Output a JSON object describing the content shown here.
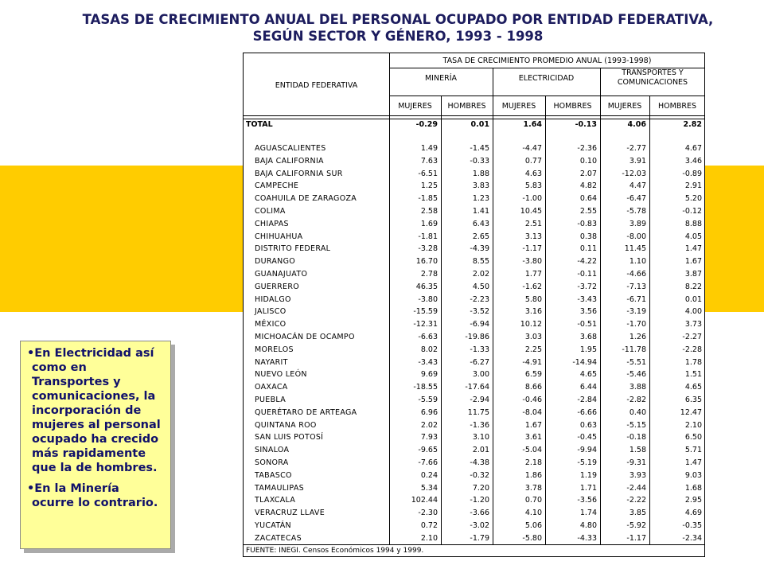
{
  "title": "TASAS DE CRECIMIENTO ANUAL DEL PERSONAL OCUPADO POR ENTIDAD FEDERATIVA, SEGÚN SECTOR Y GÉNERO, 1993 - 1998",
  "table": {
    "entity_header": "ENTIDAD FEDERATIVA",
    "span_header": "TASA DE CRECIMIENTO PROMEDIO ANUAL (1993-1998)",
    "sectors": [
      "MINERÍA",
      "ELECTRICIDAD",
      "TRANSPORTES Y COMUNICACIONES"
    ],
    "columns": [
      "MUJERES",
      "HOMBRES",
      "MUJERES",
      "HOMBRES",
      "MUJERES",
      "HOMBRES"
    ],
    "total": [
      "TOTAL",
      "-0.29",
      "0.01",
      "1.64",
      "-0.13",
      "4.06",
      "2.82"
    ],
    "rows": [
      [
        "AGUASCALIENTES",
        "1.49",
        "-1.45",
        "-4.47",
        "-2.36",
        "-2.77",
        "4.67"
      ],
      [
        "BAJA CALIFORNIA",
        "7.63",
        "-0.33",
        "0.77",
        "0.10",
        "3.91",
        "3.46"
      ],
      [
        "BAJA CALIFORNIA SUR",
        "-6.51",
        "1.88",
        "4.63",
        "2.07",
        "-12.03",
        "-0.89"
      ],
      [
        "CAMPECHE",
        "1.25",
        "3.83",
        "5.83",
        "4.82",
        "4.47",
        "2.91"
      ],
      [
        "COAHUILA DE ZARAGOZA",
        "-1.85",
        "1.23",
        "-1.00",
        "0.64",
        "-6.47",
        "5.20"
      ],
      [
        "COLIMA",
        "2.58",
        "1.41",
        "10.45",
        "2.55",
        "-5.78",
        "-0.12"
      ],
      [
        "CHIAPAS",
        "1.69",
        "6.43",
        "2.51",
        "-0.83",
        "3.89",
        "8.88"
      ],
      [
        "CHIHUAHUA",
        "-1.81",
        "2.65",
        "3.13",
        "0.38",
        "-8.00",
        "4.05"
      ],
      [
        "DISTRITO FEDERAL",
        "-3.28",
        "-4.39",
        "-1.17",
        "0.11",
        "11.45",
        "1.47"
      ],
      [
        "DURANGO",
        "16.70",
        "8.55",
        "-3.80",
        "-4.22",
        "1.10",
        "1.67"
      ],
      [
        "GUANAJUATO",
        "2.78",
        "2.02",
        "1.77",
        "-0.11",
        "-4.66",
        "3.87"
      ],
      [
        "GUERRERO",
        "46.35",
        "4.50",
        "-1.62",
        "-3.72",
        "-7.13",
        "8.22"
      ],
      [
        "HIDALGO",
        "-3.80",
        "-2.23",
        "5.80",
        "-3.43",
        "-6.71",
        "0.01"
      ],
      [
        "JALISCO",
        "-15.59",
        "-3.52",
        "3.16",
        "3.56",
        "-3.19",
        "4.00"
      ],
      [
        "MÉXICO",
        "-12.31",
        "-6.94",
        "10.12",
        "-0.51",
        "-1.70",
        "3.73"
      ],
      [
        "MICHOACÁN DE OCAMPO",
        "-6.63",
        "-19.86",
        "3.03",
        "3.68",
        "1.26",
        "-2.27"
      ],
      [
        "MORELOS",
        "8.02",
        "-1.33",
        "2.25",
        "1.95",
        "-11.78",
        "-2.28"
      ],
      [
        "NAYARIT",
        "-3.43",
        "-6.27",
        "-4.91",
        "-14.94",
        "-5.51",
        "1.78"
      ],
      [
        "NUEVO LEÓN",
        "9.69",
        "3.00",
        "6.59",
        "4.65",
        "-5.46",
        "1.51"
      ],
      [
        "OAXACA",
        "-18.55",
        "-17.64",
        "8.66",
        "6.44",
        "3.88",
        "4.65"
      ],
      [
        "PUEBLA",
        "-5.59",
        "-2.94",
        "-0.46",
        "-2.84",
        "-2.82",
        "6.35"
      ],
      [
        "QUERÉTARO DE ARTEAGA",
        "6.96",
        "11.75",
        "-8.04",
        "-6.66",
        "0.40",
        "12.47"
      ],
      [
        "QUINTANA ROO",
        "2.02",
        "-1.36",
        "1.67",
        "0.63",
        "-5.15",
        "2.10"
      ],
      [
        "SAN LUIS POTOSÍ",
        "7.93",
        "3.10",
        "3.61",
        "-0.45",
        "-0.18",
        "6.50"
      ],
      [
        "SINALOA",
        "-9.65",
        "2.01",
        "-5.04",
        "-9.94",
        "1.58",
        "5.71"
      ],
      [
        "SONORA",
        "-7.66",
        "-4.38",
        "2.18",
        "-5.19",
        "-9.31",
        "1.47"
      ],
      [
        "TABASCO",
        "0.24",
        "-0.32",
        "1.86",
        "1.19",
        "3.93",
        "9.03"
      ],
      [
        "TAMAULIPAS",
        "5.34",
        "7.20",
        "3.78",
        "1.71",
        "-2.44",
        "1.68"
      ],
      [
        "TLAXCALA",
        "102.44",
        "-1.20",
        "0.70",
        "-3.56",
        "-2.22",
        "2.95"
      ],
      [
        "VERACRUZ LLAVE",
        "-2.30",
        "-3.66",
        "4.10",
        "1.74",
        "3.85",
        "4.69"
      ],
      [
        "YUCATÁN",
        "0.72",
        "-3.02",
        "5.06",
        "4.80",
        "-5.92",
        "-0.35"
      ],
      [
        "ZACATECAS",
        "2.10",
        "-1.79",
        "-5.80",
        "-4.33",
        "-1.17",
        "-2.34"
      ]
    ],
    "source": "FUENTE: INEGI. Censos Económicos 1994 y 1999."
  },
  "note": {
    "bullets": [
      "En Electricidad así como en Transportes y comunicaciones, la incorporación de mujeres al personal ocupado ha crecido más rapidamente que la de hombres.",
      "En la Minería ocurre lo contrario."
    ]
  }
}
